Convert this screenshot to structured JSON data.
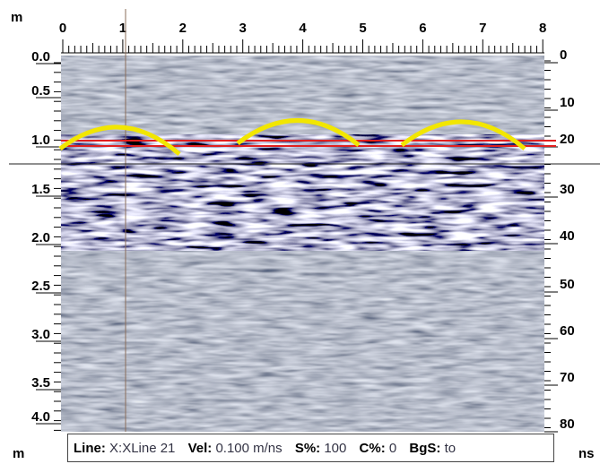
{
  "axes": {
    "top_unit": "m",
    "bottom_unit": "m",
    "time_unit": "ns",
    "top_ticks": [
      "0",
      "1",
      "2",
      "3",
      "4",
      "5",
      "6",
      "7",
      "8"
    ],
    "left_ticks": [
      "0.0",
      "0.5",
      "1.0",
      "1.5",
      "2.0",
      "2.5",
      "3.0",
      "3.5",
      "4.0"
    ],
    "right_ticks": [
      "0",
      "10",
      "20",
      "30",
      "40",
      "50",
      "60",
      "70",
      "80"
    ]
  },
  "status_bar": {
    "line_label": "Line:",
    "line_value": "X:XLine 21",
    "vel_label": "Vel:",
    "vel_value": "0.100 m/ns",
    "s_label": "S%:",
    "s_value": "100",
    "c_label": "C%:",
    "c_value": "0",
    "bgs_label": "BgS:",
    "bgs_value": "to"
  }
}
